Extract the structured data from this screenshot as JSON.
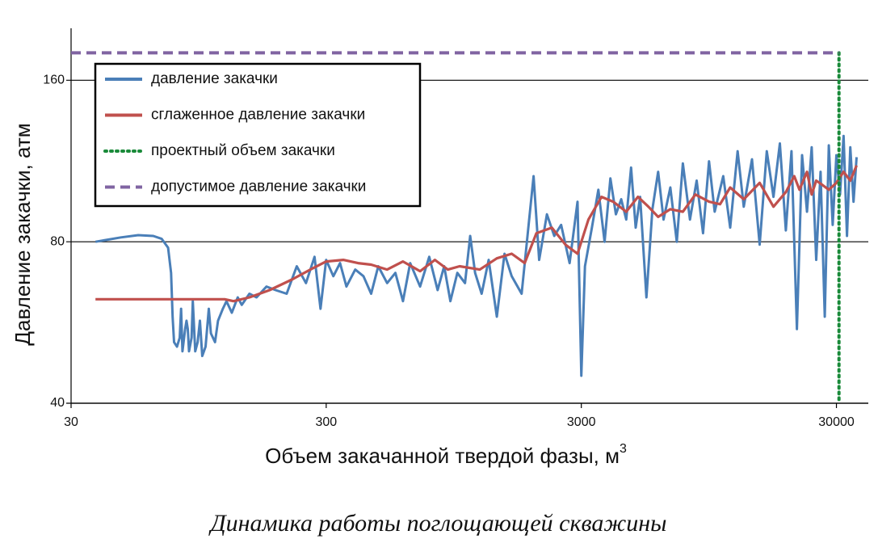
{
  "chart_data": {
    "type": "line",
    "ylabel": "Давление закачки, атм",
    "xlabel": "Объем закачанной твердой фазы, м",
    "xlabel_sup": "3",
    "caption": "Динамика работы поглощающей скважины",
    "xscale": "log",
    "yscale": "log",
    "xlim": [
      30,
      40000
    ],
    "ylim": [
      40,
      200
    ],
    "xticks": [
      30,
      300,
      3000,
      30000
    ],
    "yticks": [
      40,
      80,
      160
    ],
    "grid": true,
    "legend": "upper left",
    "series": [
      {
        "name": "давление закачки",
        "color": "#4a7fb8",
        "x": [
          37.4,
          47,
          55,
          63,
          68,
          72,
          74,
          75,
          76,
          78,
          80,
          81,
          82,
          84,
          85,
          86,
          87,
          89,
          90,
          92,
          94,
          96,
          98,
          101,
          104,
          106,
          110,
          113,
          118,
          122,
          128,
          135,
          140,
          150,
          160,
          175,
          190,
          210,
          230,
          250,
          270,
          285,
          300,
          320,
          340,
          360,
          390,
          420,
          450,
          480,
          520,
          560,
          600,
          640,
          700,
          760,
          820,
          870,
          920,
          980,
          1050,
          1100,
          1150,
          1220,
          1300,
          1400,
          1500,
          1600,
          1750,
          1850,
          1950,
          2050,
          2200,
          2350,
          2500,
          2700,
          2900,
          3000,
          3100,
          3300,
          3500,
          3700,
          3900,
          4100,
          4300,
          4500,
          4700,
          4900,
          5100,
          5400,
          5700,
          6000,
          6300,
          6700,
          7100,
          7500,
          8000,
          8500,
          9000,
          9500,
          10000,
          10800,
          11500,
          12300,
          13000,
          14000,
          15000,
          16000,
          17000,
          18000,
          19000,
          20000,
          21000,
          22000,
          23000,
          24000,
          25000,
          26000,
          27000,
          28000,
          29000,
          30000,
          31000,
          32000,
          33000,
          34000,
          35000,
          36000
        ],
        "y": [
          80,
          81.5,
          82.3,
          82,
          81,
          78,
          70,
          58,
          52,
          51,
          53,
          60,
          50,
          55,
          57,
          55,
          50,
          53,
          62,
          50,
          52,
          57,
          49,
          51,
          60,
          54,
          52,
          57,
          60,
          62,
          59,
          63,
          61,
          64,
          63,
          66,
          65,
          64,
          72,
          67,
          75,
          60,
          74,
          69,
          73,
          66,
          71,
          69,
          64,
          72,
          67,
          70,
          62,
          73,
          66,
          75,
          65,
          72,
          62,
          70,
          67,
          82,
          70,
          64,
          74,
          58,
          76,
          69,
          64,
          83,
          106,
          74,
          90,
          82,
          86,
          73,
          95,
          45,
          72,
          85,
          100,
          80,
          105,
          90,
          96,
          88,
          110,
          85,
          97,
          63,
          92,
          108,
          88,
          101,
          80,
          112,
          88,
          104,
          83,
          113,
          91,
          106,
          85,
          118,
          93,
          114,
          79,
          118,
          97,
          122,
          84,
          118,
          55,
          116,
          91,
          120,
          74,
          108,
          58,
          121,
          86,
          116,
          98,
          126,
          82,
          120,
          95,
          115
        ]
      },
      {
        "name": "сглаженное давление закачки",
        "color": "#c0504d",
        "x": [
          37.4,
          60,
          100,
          120,
          130,
          150,
          180,
          220,
          260,
          300,
          350,
          400,
          450,
          520,
          600,
          700,
          800,
          900,
          1000,
          1200,
          1400,
          1600,
          1800,
          2000,
          2300,
          2600,
          2900,
          3200,
          3600,
          4000,
          4500,
          5000,
          5500,
          6000,
          6700,
          7500,
          8400,
          9500,
          10500,
          11500,
          13000,
          15000,
          17000,
          19000,
          20500,
          21500,
          23000,
          24000,
          25000,
          26500,
          28000,
          30000,
          32000,
          34000,
          36000
        ],
        "y": [
          62.5,
          62.5,
          62.5,
          62.5,
          62,
          63,
          65,
          68,
          71,
          73.5,
          74,
          73,
          72.5,
          71,
          73.5,
          70.5,
          74,
          71,
          72,
          71,
          74.5,
          76,
          73,
          83,
          85,
          79,
          76,
          88,
          97,
          95,
          91,
          97,
          93,
          89,
          92,
          91,
          98,
          95,
          94,
          101,
          96,
          103,
          93,
          99,
          106,
          100,
          108,
          98,
          104,
          102,
          100,
          103,
          108,
          104,
          111
        ]
      },
      {
        "name": "проектный объем закачки",
        "color": "#1a8a3a",
        "style": "dotted",
        "x_value": 30700
      },
      {
        "name": "допустимое давление закачки",
        "color": "#8064a2",
        "style": "dashed",
        "y_value": 180
      }
    ]
  }
}
